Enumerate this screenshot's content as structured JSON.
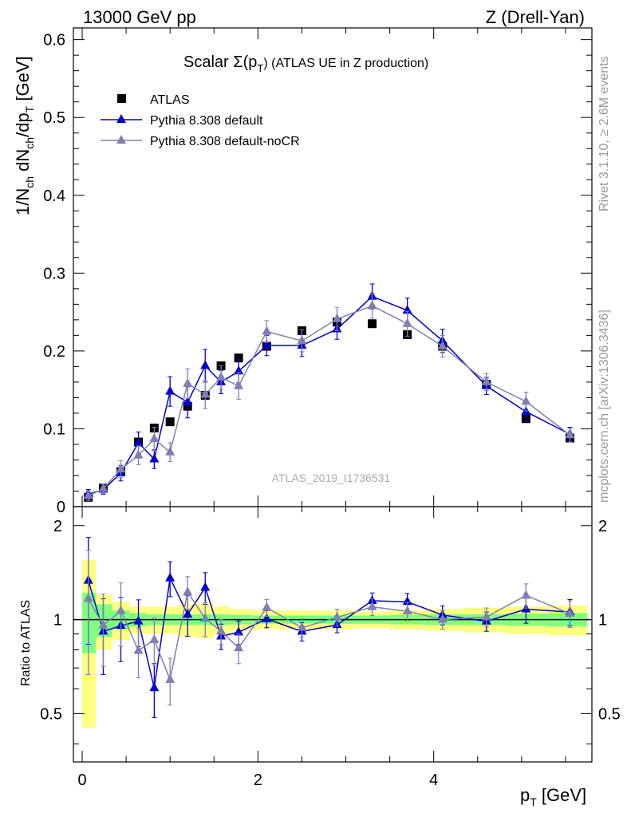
{
  "header": {
    "left": "13000 GeV pp",
    "right": "Z (Drell-Yan)"
  },
  "side": {
    "rivet": "Rivet 3.1.10, ≥ 2.6M events",
    "mcplots": "mcplots.cern.ch [arXiv:1306.3436]"
  },
  "colors": {
    "atlas": "#000000",
    "pythia_default": "#0000cc",
    "pythia_nocr": "#7f7fb2",
    "band_inner": "#80ff80",
    "band_outer": "#ffff80"
  },
  "chart_data": {
    "type": "scatter",
    "title_main": "Scalar Σ(p",
    "title_sub": "T",
    "title_tail": ") (ATLAS UE in Z production)",
    "analysis_label": "ATLAS_2019_I1736531",
    "ylabel_main": {
      "a": "1/N",
      "b": "ch",
      "c": " dN",
      "d": "ch",
      "e": "/dp",
      "f": "T",
      "g": " [GeV]"
    },
    "ylabel_ratio": "Ratio to ATLAS",
    "xlabel": {
      "a": "p",
      "b": "T",
      "c": " [GeV]"
    },
    "xlim": [
      -0.1,
      5.8
    ],
    "ylim_main": [
      0,
      0.615
    ],
    "ylim_ratio": [
      0.35,
      2.3
    ],
    "x_ticks": [
      "0",
      "2",
      "4"
    ],
    "y_ticks_main": [
      "0",
      "0.1",
      "0.2",
      "0.3",
      "0.4",
      "0.5",
      "0.6"
    ],
    "y_ticks_ratio": [
      "0.5",
      "1",
      "2"
    ],
    "legend": [
      "ATLAS",
      "Pythia 8.308 default",
      "Pythia 8.308 default-noCR"
    ],
    "atlas": {
      "x": [
        0.07,
        0.24,
        0.44,
        0.64,
        0.82,
        1.0,
        1.2,
        1.4,
        1.58,
        1.78,
        2.1,
        2.5,
        2.9,
        3.3,
        3.7,
        4.1,
        4.6,
        5.05,
        5.55
      ],
      "y": [
        0.012,
        0.024,
        0.045,
        0.083,
        0.101,
        0.109,
        0.129,
        0.143,
        0.181,
        0.191,
        0.206,
        0.226,
        0.237,
        0.235,
        0.221,
        0.206,
        0.157,
        0.113,
        0.088
      ],
      "band_inner": [
        0.22,
        0.12,
        0.07,
        0.05,
        0.04,
        0.04,
        0.04,
        0.04,
        0.04,
        0.035,
        0.03,
        0.03,
        0.03,
        0.03,
        0.035,
        0.04,
        0.04,
        0.045,
        0.05
      ],
      "band_outer": [
        0.55,
        0.2,
        0.14,
        0.1,
        0.1,
        0.1,
        0.12,
        0.13,
        0.1,
        0.08,
        0.07,
        0.07,
        0.07,
        0.06,
        0.07,
        0.08,
        0.09,
        0.1,
        0.11
      ]
    },
    "series": [
      {
        "name": "Pythia 8.308 default",
        "x": [
          0.07,
          0.24,
          0.44,
          0.64,
          0.82,
          1.0,
          1.2,
          1.4,
          1.58,
          1.78,
          2.1,
          2.5,
          2.9,
          3.3,
          3.7,
          4.1,
          4.6,
          5.05,
          5.55
        ],
        "y": [
          0.016,
          0.022,
          0.043,
          0.082,
          0.061,
          0.148,
          0.134,
          0.181,
          0.16,
          0.174,
          0.207,
          0.207,
          0.228,
          0.27,
          0.252,
          0.213,
          0.155,
          0.122,
          0.093
        ],
        "err": [
          0.006,
          0.006,
          0.01,
          0.014,
          0.012,
          0.019,
          0.02,
          0.021,
          0.015,
          0.015,
          0.013,
          0.014,
          0.013,
          0.016,
          0.016,
          0.015,
          0.011,
          0.012,
          0.009
        ]
      },
      {
        "name": "Pythia 8.308 default-noCR",
        "x": [
          0.07,
          0.24,
          0.44,
          0.64,
          0.82,
          1.0,
          1.2,
          1.4,
          1.58,
          1.78,
          2.1,
          2.5,
          2.9,
          3.3,
          3.7,
          4.1,
          4.6,
          5.05,
          5.55
        ],
        "y": [
          0.014,
          0.023,
          0.048,
          0.066,
          0.087,
          0.07,
          0.158,
          0.144,
          0.166,
          0.155,
          0.225,
          0.213,
          0.241,
          0.258,
          0.235,
          0.206,
          0.16,
          0.135,
          0.092
        ],
        "err": [
          0.006,
          0.006,
          0.011,
          0.012,
          0.015,
          0.012,
          0.019,
          0.018,
          0.015,
          0.017,
          0.014,
          0.014,
          0.015,
          0.016,
          0.016,
          0.014,
          0.011,
          0.012,
          0.009
        ]
      }
    ]
  }
}
